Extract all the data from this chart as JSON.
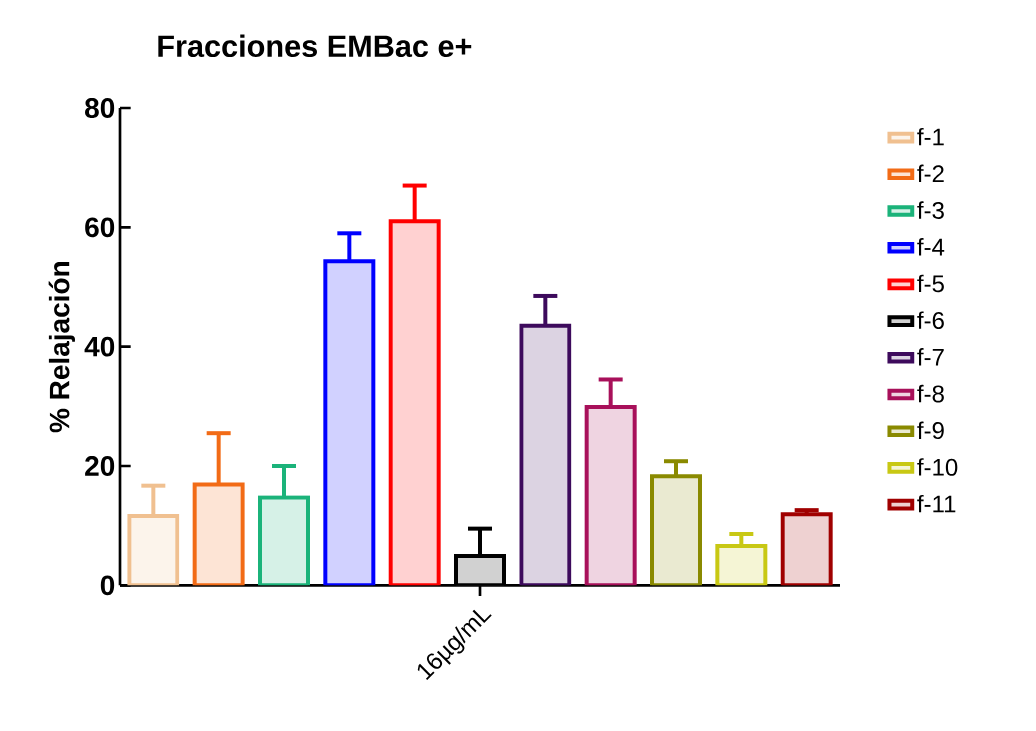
{
  "chart_data": {
    "type": "bar",
    "title": "Fracciones EMBac e+",
    "ylabel": "% Relajación",
    "categories": [
      "16µg/mL"
    ],
    "series": [
      {
        "name": "f-1",
        "color": "#f0c090",
        "values": [
          11.6
        ],
        "errors": [
          [
            11.6,
            16.7
          ]
        ]
      },
      {
        "name": "f-2",
        "color": "#f26b16",
        "values": [
          16.9
        ],
        "errors": [
          [
            16.9,
            25.5
          ]
        ]
      },
      {
        "name": "f-3",
        "color": "#1bb37a",
        "values": [
          14.7
        ],
        "errors": [
          [
            14.7,
            20.0
          ]
        ]
      },
      {
        "name": "f-4",
        "color": "#0000ff",
        "values": [
          54.3
        ],
        "errors": [
          [
            54.3,
            59.0
          ]
        ]
      },
      {
        "name": "f-5",
        "color": "#ff0000",
        "values": [
          61.0
        ],
        "errors": [
          [
            61.0,
            67.0
          ]
        ]
      },
      {
        "name": "f-6",
        "color": "#000000",
        "values": [
          4.9
        ],
        "errors": [
          [
            4.9,
            9.5
          ]
        ]
      },
      {
        "name": "f-7",
        "color": "#3d0a5c",
        "values": [
          43.5
        ],
        "errors": [
          [
            43.5,
            48.5
          ]
        ]
      },
      {
        "name": "f-8",
        "color": "#a8105a",
        "values": [
          29.9
        ],
        "errors": [
          [
            29.9,
            34.5
          ]
        ]
      },
      {
        "name": "f-9",
        "color": "#8a8a00",
        "values": [
          18.3
        ],
        "errors": [
          [
            18.3,
            20.8
          ]
        ]
      },
      {
        "name": "f-10",
        "color": "#c8c814",
        "values": [
          6.6
        ],
        "errors": [
          [
            6.6,
            8.6
          ]
        ]
      },
      {
        "name": "f-11",
        "color": "#a00000",
        "values": [
          11.9
        ],
        "errors": [
          [
            11.9,
            12.6
          ]
        ]
      }
    ],
    "ylim": [
      0,
      80
    ],
    "yticks": [
      0,
      20,
      40,
      60,
      80
    ],
    "grid": false,
    "legend": "right"
  }
}
